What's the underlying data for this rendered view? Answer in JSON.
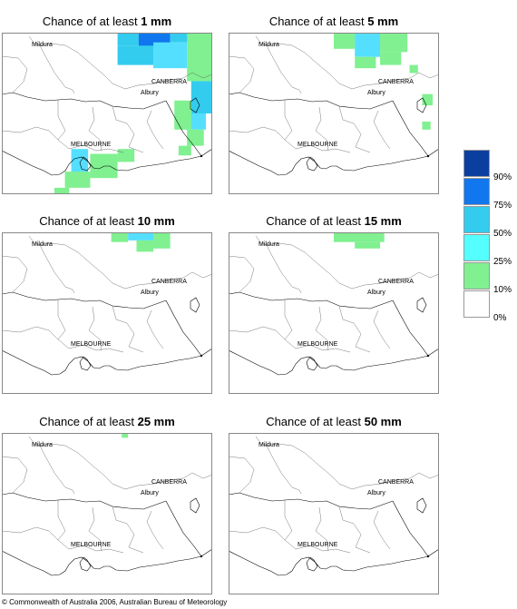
{
  "panels": [
    {
      "prefix": "Chance of at least ",
      "amount": "1 mm",
      "cells": [
        [
          0.55,
          0.0,
          0.65,
          0.08,
          "#33ccee"
        ],
        [
          0.65,
          0.0,
          0.8,
          0.09,
          "#1177ee"
        ],
        [
          0.8,
          0.0,
          0.98,
          0.06,
          "#33ccee"
        ],
        [
          0.55,
          0.08,
          0.72,
          0.2,
          "#33ccee"
        ],
        [
          0.72,
          0.06,
          0.88,
          0.22,
          "#55dfff"
        ],
        [
          0.88,
          0.0,
          1.0,
          0.3,
          "#80f090"
        ],
        [
          0.9,
          0.3,
          1.0,
          0.5,
          "#33ccee"
        ],
        [
          0.87,
          0.5,
          0.97,
          0.6,
          "#55dfff"
        ],
        [
          0.82,
          0.42,
          0.9,
          0.6,
          "#80f090"
        ],
        [
          0.88,
          0.6,
          0.96,
          0.7,
          "#80f090"
        ],
        [
          0.84,
          0.7,
          0.9,
          0.76,
          "#80f090"
        ],
        [
          0.42,
          0.75,
          0.55,
          0.9,
          "#80f090"
        ],
        [
          0.33,
          0.72,
          0.41,
          0.88,
          "#55dfff"
        ],
        [
          0.3,
          0.86,
          0.42,
          0.96,
          "#80f090"
        ],
        [
          0.25,
          0.96,
          0.32,
          1.0,
          "#80f090"
        ],
        [
          0.55,
          0.72,
          0.63,
          0.8,
          "#80f090"
        ]
      ]
    },
    {
      "prefix": "Chance of at least ",
      "amount": "5 mm",
      "cells": [
        [
          0.5,
          0.0,
          0.6,
          0.1,
          "#80f090"
        ],
        [
          0.6,
          0.0,
          0.72,
          0.15,
          "#55dfff"
        ],
        [
          0.72,
          0.0,
          0.85,
          0.12,
          "#80f090"
        ],
        [
          0.6,
          0.15,
          0.7,
          0.22,
          "#80f090"
        ],
        [
          0.72,
          0.12,
          0.82,
          0.2,
          "#80f090"
        ],
        [
          0.86,
          0.2,
          0.9,
          0.25,
          "#80f090"
        ],
        [
          0.92,
          0.38,
          0.97,
          0.45,
          "#80f090"
        ],
        [
          0.92,
          0.55,
          0.96,
          0.6,
          "#80f090"
        ]
      ]
    },
    {
      "prefix": "Chance of at least ",
      "amount": "10 mm",
      "cells": [
        [
          0.52,
          0.0,
          0.6,
          0.06,
          "#80f090"
        ],
        [
          0.6,
          0.0,
          0.72,
          0.05,
          "#55dfff"
        ],
        [
          0.72,
          0.0,
          0.8,
          0.1,
          "#80f090"
        ],
        [
          0.64,
          0.05,
          0.72,
          0.12,
          "#80f090"
        ]
      ]
    },
    {
      "prefix": "Chance of at least ",
      "amount": "15 mm",
      "cells": [
        [
          0.5,
          0.0,
          0.74,
          0.06,
          "#80f090"
        ],
        [
          0.6,
          0.06,
          0.72,
          0.1,
          "#80f090"
        ]
      ]
    },
    {
      "prefix": "Chance of at least ",
      "amount": "25 mm",
      "cells": [
        [
          0.57,
          0.0,
          0.6,
          0.03,
          "#80f090"
        ]
      ]
    },
    {
      "prefix": "Chance of at least ",
      "amount": "50 mm",
      "cells": []
    }
  ],
  "places": {
    "mildura": "Mildura",
    "canberra": "CANBERRA",
    "albury": "Albury",
    "melbourne": "MELBOURNE"
  },
  "legend": [
    {
      "label": "90%",
      "color": "#0a3fa0"
    },
    {
      "label": "75%",
      "color": "#1177ee"
    },
    {
      "label": "50%",
      "color": "#33ccee"
    },
    {
      "label": "25%",
      "color": "#55ffff"
    },
    {
      "label": "10%",
      "color": "#80f090"
    },
    {
      "label": "0%",
      "color": "#ffffff"
    }
  ],
  "copyright": "© Commonwealth of Australia 2006, Australian Bureau of Meteorology"
}
